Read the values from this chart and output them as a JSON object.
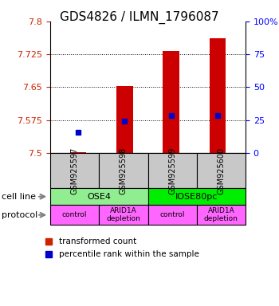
{
  "title": "GDS4826 / ILMN_1796087",
  "samples": [
    "GSM925597",
    "GSM925598",
    "GSM925599",
    "GSM925600"
  ],
  "red_values": [
    7.502,
    7.652,
    7.733,
    7.762
  ],
  "blue_values": [
    7.548,
    7.572,
    7.585,
    7.585
  ],
  "ylim": [
    7.5,
    7.8
  ],
  "yticks_left": [
    7.5,
    7.575,
    7.65,
    7.725,
    7.8
  ],
  "yticks_right": [
    0,
    25,
    50,
    75,
    100
  ],
  "cell_line_labels": [
    "OSE4",
    "IOSE80pc"
  ],
  "cell_line_spans": [
    2,
    2
  ],
  "cell_line_colors": [
    "#90EE90",
    "#00EE00"
  ],
  "protocols": [
    "control",
    "ARID1A\ndepletion",
    "control",
    "ARID1A\ndepletion"
  ],
  "protocol_color": "#FF66FF",
  "sample_box_color": "#C8C8C8",
  "bar_color": "#CC0000",
  "dot_color": "#0000CC"
}
